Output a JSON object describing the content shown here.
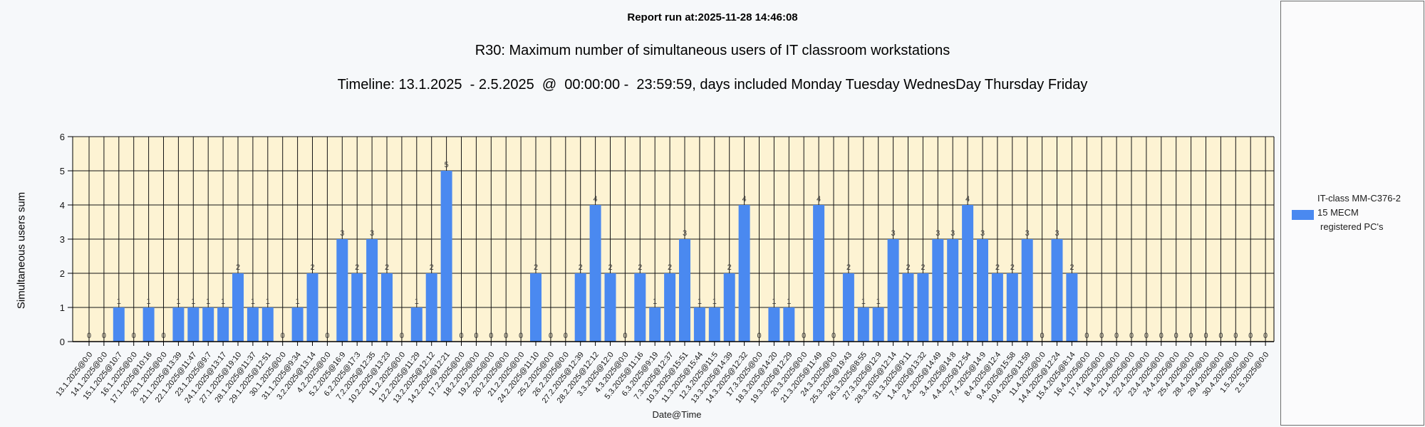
{
  "header": {
    "report_run": "Report run at:2025-11-28 14:46:08",
    "title": "R30: Maximum number of simultaneous users of IT classroom workstations",
    "timeline": "Timeline: 13.1.2025  - 2.5.2025  @  00:00:00 -  23:59:59, days included Monday Tuesday WednesDay Thursday Friday"
  },
  "colors": {
    "bar": "#4A89F0",
    "plot_bg": "#FDF3D3",
    "grid": "#141414",
    "axis": "#000000",
    "value_label": "#3a3a3a",
    "tick_label": "#141414",
    "page_bg": "#F6F8FA"
  },
  "legend": {
    "lines": [
      "IT-class MM-C376-2",
      "15 MECM",
      "registered PC's"
    ],
    "swatch_color": "#4A89F0"
  },
  "chart_data": {
    "type": "bar",
    "title": "R30: Maximum number of simultaneous users of IT classroom workstations",
    "xlabel": "Date@Time",
    "ylabel": "Simultaneous users sum",
    "ylim": [
      0,
      6
    ],
    "yticks": [
      0,
      1,
      2,
      3,
      4,
      5,
      6
    ],
    "grid": true,
    "legend_position": "right",
    "series_name": "IT-class MM-C376-2 15 MECM registered PC's",
    "categories": [
      "13.1.2025@0:0",
      "14.1.2025@0:0",
      "15.1.2025@10:7",
      "16.1.2025@0:0",
      "17.1.2025@10:16",
      "20.1.2025@0:0",
      "21.1.2025@13:39",
      "22.1.2025@11:47",
      "23.1.2025@9:7",
      "24.1.2025@13:17",
      "27.1.2025@19:10",
      "28.1.2025@11:37",
      "29.1.2025@12:51",
      "30.1.2025@0:0",
      "31.1.2025@9:34",
      "3.2.2025@13:14",
      "4.2.2025@0:0",
      "5.2.2025@16:9",
      "6.2.2025@17:3",
      "7.2.2025@12:35",
      "10.2.2025@13:23",
      "11.2.2025@0:0",
      "12.2.2025@11:29",
      "13.2.2025@12:12",
      "14.2.2025@12:21",
      "17.2.2025@0:0",
      "18.2.2025@0:0",
      "19.2.2025@0:0",
      "20.2.2025@0:0",
      "21.2.2025@0:0",
      "24.2.2025@11:10",
      "25.2.2025@0:0",
      "26.2.2025@0:0",
      "27.2.2025@12:39",
      "28.2.2025@12:12",
      "3.3.2025@12:0",
      "4.3.2025@0:0",
      "5.3.2025@11:16",
      "6.3.2025@9:19",
      "7.3.2025@12:37",
      "10.3.2025@15:51",
      "11.3.2025@15:44",
      "12.3.2025@11:5",
      "13.3.2025@14:39",
      "14.3.2025@12:32",
      "17.3.2025@0:0",
      "18.3.2025@14:20",
      "19.3.2025@12:29",
      "20.3.2025@0:0",
      "21.3.2025@11:49",
      "24.3.2025@0:0",
      "25.3.2025@19:43",
      "26.3.2025@8:55",
      "27.3.2025@12:9",
      "28.3.2025@12:14",
      "31.3.2025@9:11",
      "1.4.2025@13:32",
      "2.4.2025@14:49",
      "3.4.2025@14:8",
      "4.4.2025@12:54",
      "7.4.2025@14:9",
      "8.4.2025@12:4",
      "9.4.2025@15:58",
      "10.4.2025@13:59",
      "11.4.2025@0:0",
      "14.4.2025@12:24",
      "15.4.2025@8:14",
      "16.4.2025@0:0",
      "17.4.2025@0:0",
      "18.4.2025@0:0",
      "21.4.2025@0:0",
      "22.4.2025@0:0",
      "23.4.2025@0:0",
      "24.4.2025@0:0",
      "25.4.2025@0:0",
      "28.4.2025@0:0",
      "29.4.2025@0:0",
      "30.4.2025@0:0",
      "1.5.2025@0:0",
      "2.5.2025@0:0"
    ],
    "values": [
      0,
      0,
      1,
      0,
      1,
      0,
      1,
      1,
      1,
      1,
      2,
      1,
      1,
      0,
      1,
      2,
      0,
      3,
      2,
      3,
      2,
      0,
      1,
      2,
      5,
      0,
      0,
      0,
      0,
      0,
      2,
      0,
      0,
      2,
      4,
      2,
      0,
      2,
      1,
      2,
      3,
      1,
      1,
      2,
      4,
      0,
      1,
      1,
      0,
      4,
      0,
      2,
      1,
      1,
      3,
      2,
      2,
      3,
      3,
      4,
      3,
      2,
      2,
      3,
      0,
      3,
      2,
      0,
      0,
      0,
      0,
      0,
      0,
      0,
      0,
      0,
      0,
      0,
      0,
      0
    ]
  }
}
